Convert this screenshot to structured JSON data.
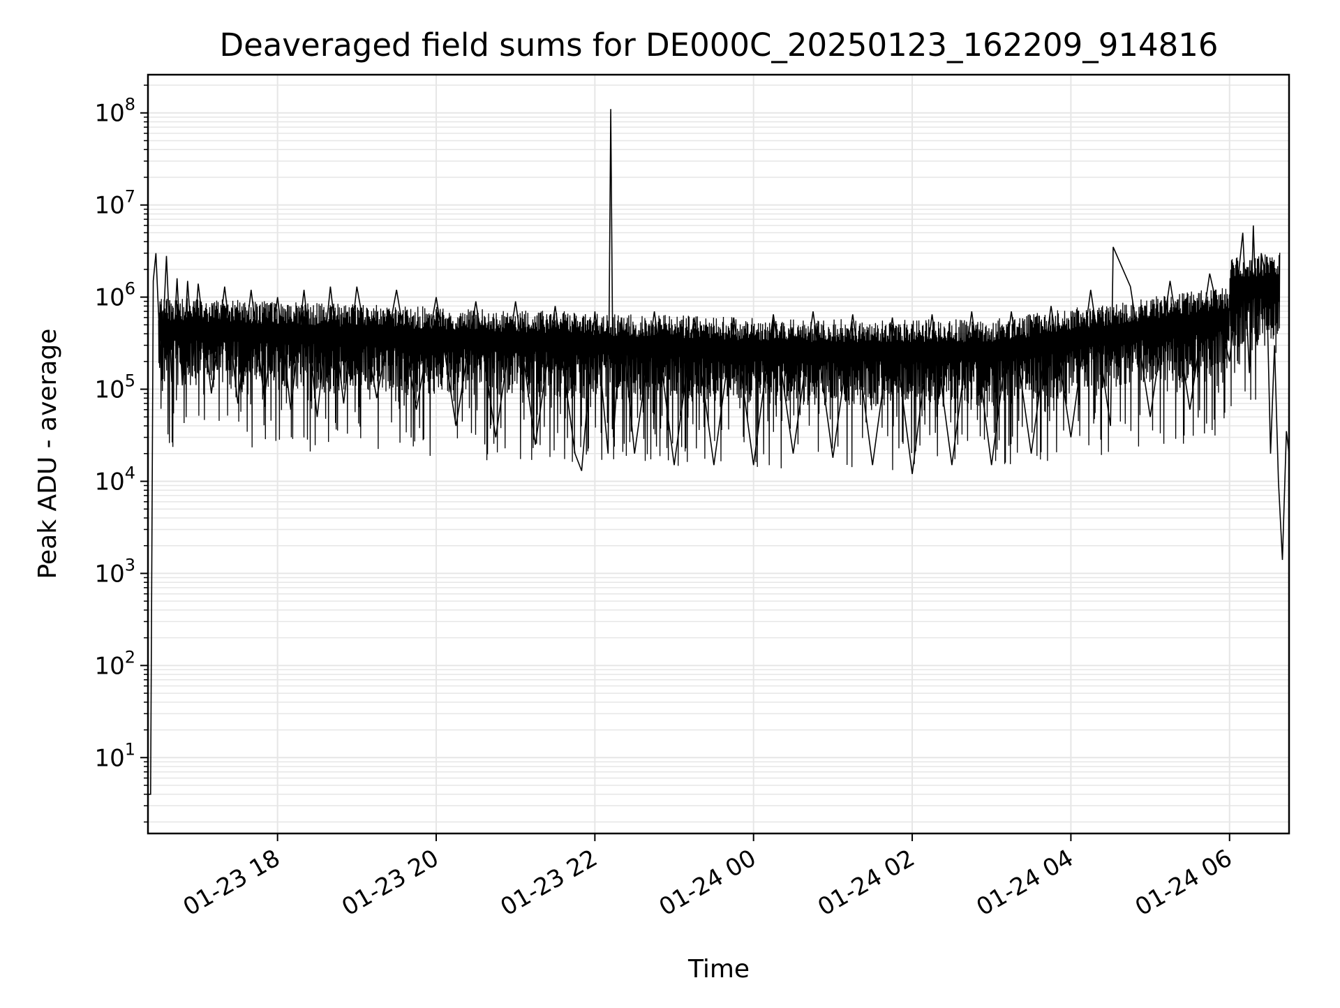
{
  "chart_data": {
    "type": "line",
    "title": "Deaveraged field sums for DE000C_20250123_162209_914816",
    "xlabel": "Time",
    "ylabel": "Peak ADU - average",
    "yscale": "log",
    "ylim": [
      1.5,
      260000000
    ],
    "xlim": [
      "2025-01-23 16:22",
      "2025-01-24 06:45"
    ],
    "x_ticks": [
      {
        "value": "2025-01-23 18:00",
        "label": "01-23 18"
      },
      {
        "value": "2025-01-23 20:00",
        "label": "01-23 20"
      },
      {
        "value": "2025-01-23 22:00",
        "label": "01-23 22"
      },
      {
        "value": "2025-01-24 00:00",
        "label": "01-24 00"
      },
      {
        "value": "2025-01-24 02:00",
        "label": "01-24 02"
      },
      {
        "value": "2025-01-24 04:00",
        "label": "01-24 04"
      },
      {
        "value": "2025-01-24 06:00",
        "label": "01-24 06"
      }
    ],
    "y_ticks": [
      {
        "value": 10,
        "base": "10",
        "exp": "1"
      },
      {
        "value": 100,
        "base": "10",
        "exp": "2"
      },
      {
        "value": 1000,
        "base": "10",
        "exp": "3"
      },
      {
        "value": 10000,
        "base": "10",
        "exp": "4"
      },
      {
        "value": 100000,
        "base": "10",
        "exp": "5"
      },
      {
        "value": 1000000,
        "base": "10",
        "exp": "6"
      },
      {
        "value": 10000000,
        "base": "10",
        "exp": "7"
      },
      {
        "value": 100000000,
        "base": "10",
        "exp": "8"
      }
    ],
    "grid": true,
    "line_color": "#000000",
    "grid_color": "#e6e6e6",
    "series": [
      {
        "x": [
          "2025-01-23 16:22",
          "2025-01-23 16:24",
          "2025-01-23 16:26",
          "2025-01-23 16:28",
          "2025-01-23 16:32",
          "2025-01-23 16:36",
          "2025-01-23 16:40",
          "2025-01-23 16:44",
          "2025-01-23 16:48",
          "2025-01-23 16:52",
          "2025-01-23 16:56",
          "2025-01-23 17:00",
          "2025-01-23 17:10",
          "2025-01-23 17:20",
          "2025-01-23 17:30",
          "2025-01-23 17:40",
          "2025-01-23 17:50",
          "2025-01-23 18:00",
          "2025-01-23 18:10",
          "2025-01-23 18:20",
          "2025-01-23 18:30",
          "2025-01-23 18:40",
          "2025-01-23 18:50",
          "2025-01-23 19:00",
          "2025-01-23 19:15",
          "2025-01-23 19:30",
          "2025-01-23 19:45",
          "2025-01-23 20:00",
          "2025-01-23 20:15",
          "2025-01-23 20:30",
          "2025-01-23 20:45",
          "2025-01-23 21:00",
          "2025-01-23 21:15",
          "2025-01-23 21:30",
          "2025-01-23 21:45",
          "2025-01-23 21:50",
          "2025-01-23 22:00",
          "2025-01-23 22:10",
          "2025-01-23 22:12",
          "2025-01-23 22:14",
          "2025-01-23 22:20",
          "2025-01-23 22:30",
          "2025-01-23 22:45",
          "2025-01-23 23:00",
          "2025-01-23 23:15",
          "2025-01-23 23:30",
          "2025-01-23 23:45",
          "2025-01-24 00:00",
          "2025-01-24 00:15",
          "2025-01-24 00:30",
          "2025-01-24 00:45",
          "2025-01-24 01:00",
          "2025-01-24 01:15",
          "2025-01-24 01:30",
          "2025-01-24 01:45",
          "2025-01-24 02:00",
          "2025-01-24 02:15",
          "2025-01-24 02:30",
          "2025-01-24 02:45",
          "2025-01-24 03:00",
          "2025-01-24 03:15",
          "2025-01-24 03:30",
          "2025-01-24 03:45",
          "2025-01-24 04:00",
          "2025-01-24 04:15",
          "2025-01-24 04:30",
          "2025-01-24 04:32",
          "2025-01-24 04:45",
          "2025-01-24 05:00",
          "2025-01-24 05:15",
          "2025-01-24 05:30",
          "2025-01-24 05:45",
          "2025-01-24 06:00",
          "2025-01-24 06:10",
          "2025-01-24 06:15",
          "2025-01-24 06:18",
          "2025-01-24 06:21",
          "2025-01-24 06:24",
          "2025-01-24 06:28",
          "2025-01-24 06:31",
          "2025-01-24 06:34",
          "2025-01-24 06:37",
          "2025-01-24 06:40",
          "2025-01-24 06:43",
          "2025-01-24 06:45"
        ],
        "y": [
          4,
          4,
          1500000,
          3000000,
          150000,
          2800000,
          120000,
          1600000,
          110000,
          1500000,
          200000,
          1400000,
          90000,
          1300000,
          70000,
          1200000,
          80000,
          1000000,
          60000,
          1200000,
          50000,
          1300000,
          70000,
          1300000,
          80000,
          1200000,
          60000,
          1000000,
          40000,
          900000,
          30000,
          900000,
          25000,
          800000,
          20000,
          13000,
          700000,
          20000,
          110000000,
          30000,
          600000,
          20000,
          700000,
          15000,
          600000,
          15000,
          600000,
          15000,
          650000,
          20000,
          700000,
          18000,
          650000,
          15000,
          600000,
          12000,
          650000,
          15000,
          700000,
          15000,
          700000,
          20000,
          800000,
          30000,
          1200000,
          40000,
          3500000,
          1300000,
          50000,
          1500000,
          60000,
          1800000,
          200000,
          5000000,
          150000,
          6000000,
          300000,
          3000000,
          1500000,
          20000,
          300000,
          10000,
          1400,
          35000,
          20000
        ]
      }
    ]
  }
}
